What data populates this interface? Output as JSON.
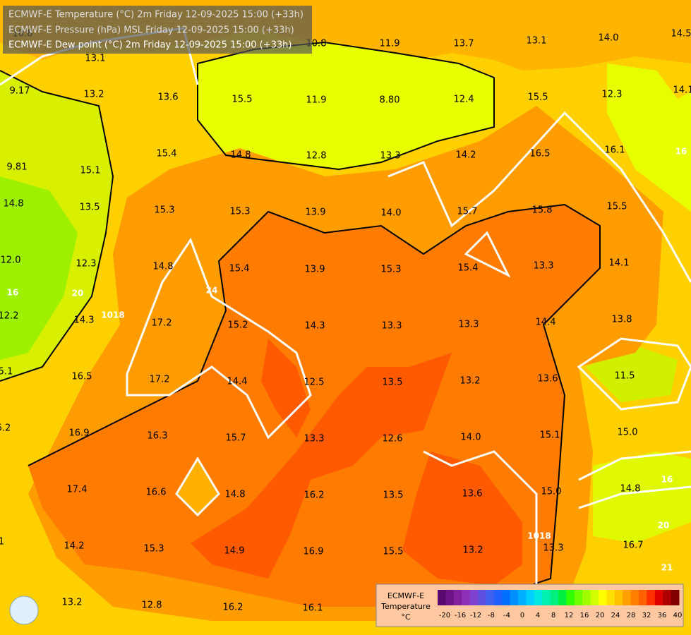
{
  "header": {
    "lines": [
      "ECMWF-E Temperature (°C) 2m Friday 12-09-2025 15:00 (+33h)",
      "ECMWF-E Pressure (hPa) MSL Friday 12-09-2025 15:00 (+33h)",
      "ECMWF-E Dew point (°C) 2m Friday 12-09-2025 15:00 (+33h)"
    ]
  },
  "map": {
    "labels": [
      "13.1",
      "10.8",
      "11.9",
      "13.7",
      "13.1",
      "14.0",
      "14.5",
      "10.8",
      "9.17",
      "13.2",
      "13.6",
      "15.5",
      "11.9",
      "8.80",
      "12.4",
      "15.5",
      "12.3",
      "14.1",
      "9.81",
      "15.1",
      "15.4",
      "14.8",
      "12.8",
      "13.3",
      "14.2",
      "16.5",
      "16.1",
      "14.8",
      "13.5",
      "15.3",
      "15.3",
      "13.9",
      "14.0",
      "15.7",
      "15.8",
      "15.5",
      "12.0",
      "12.3",
      "14.8",
      "15.4",
      "13.9",
      "15.3",
      "15.4",
      "13.3",
      "14.1",
      "12.2",
      "14.3",
      "17.2",
      "15.2",
      "14.3",
      "13.3",
      "13.3",
      "14.4",
      "13.8",
      "5.1",
      "16.5",
      "17.2",
      "14.4",
      "12.5",
      "13.5",
      "13.2",
      "13.6",
      "11.5",
      "6.2",
      "16.9",
      "16.3",
      "15.7",
      "13.3",
      "12.6",
      "14.0",
      "15.1",
      "15.0",
      "17.4",
      "16.6",
      "14.8",
      "16.2",
      "13.5",
      "13.6",
      "15.0",
      "14.8",
      "1",
      "14.2",
      "15.3",
      "14.9",
      "16.9",
      "15.5",
      "13.2",
      "13.3",
      "16.7",
      "13.2",
      "12.8",
      "16.2",
      "16.1"
    ],
    "contour_labels": [
      "1018",
      "1018",
      "20",
      "24",
      "16",
      "20",
      "21",
      "16",
      "16"
    ]
  },
  "legend": {
    "title": [
      "ECMWF-E",
      "Temperature",
      "°C"
    ],
    "ticks": [
      "-20",
      "-16",
      "-12",
      "-8",
      "-4",
      "0",
      "4",
      "8",
      "12",
      "16",
      "20",
      "24",
      "28",
      "32",
      "36",
      "40"
    ]
  }
}
